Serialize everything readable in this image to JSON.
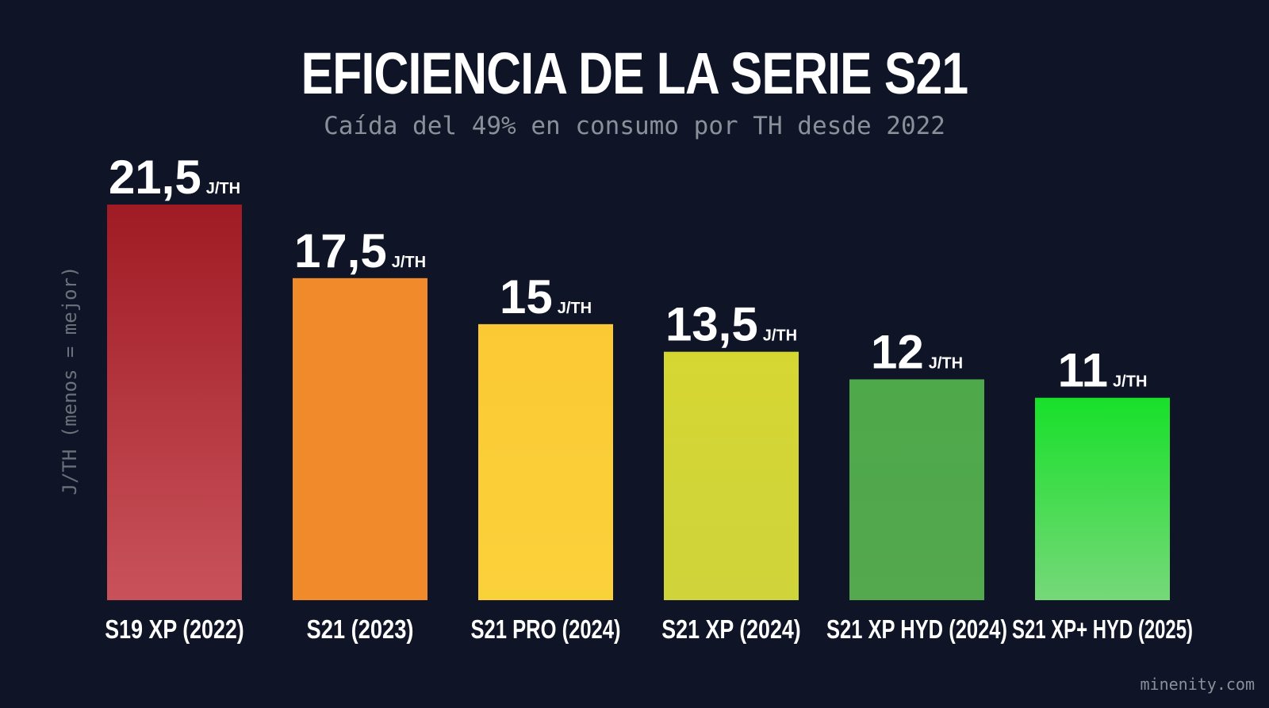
{
  "title": "EFICIENCIA DE LA SERIE S21",
  "subtitle": "Caída del 49% en consumo por TH desde 2022",
  "watermark": "minenity.com",
  "chart_data": {
    "type": "bar",
    "ylabel": "J/TH (menos = mejor)",
    "unit": "J/TH",
    "categories": [
      "S19 XP (2022)",
      "S21 (2023)",
      "S21 PRO (2024)",
      "S21 XP (2024)",
      "S21 XP HYD (2024)",
      "S21 XP+ HYD (2025)"
    ],
    "values": [
      21.5,
      17.5,
      15,
      13.5,
      12,
      11
    ],
    "value_labels": [
      "21,5",
      "17,5",
      "15",
      "13,5",
      "12",
      "11"
    ],
    "colors": [
      [
        "#a01b24",
        "#c9525a"
      ],
      [
        "#f08a2a",
        "#f08a2a"
      ],
      [
        "#fbc934",
        "#fbd13a"
      ],
      [
        "#d6d633",
        "#cfd43a"
      ],
      [
        "#4ea94a",
        "#54a84e"
      ],
      [
        "#18e02a",
        "#76d879"
      ]
    ],
    "grid": false,
    "legend": "none"
  }
}
